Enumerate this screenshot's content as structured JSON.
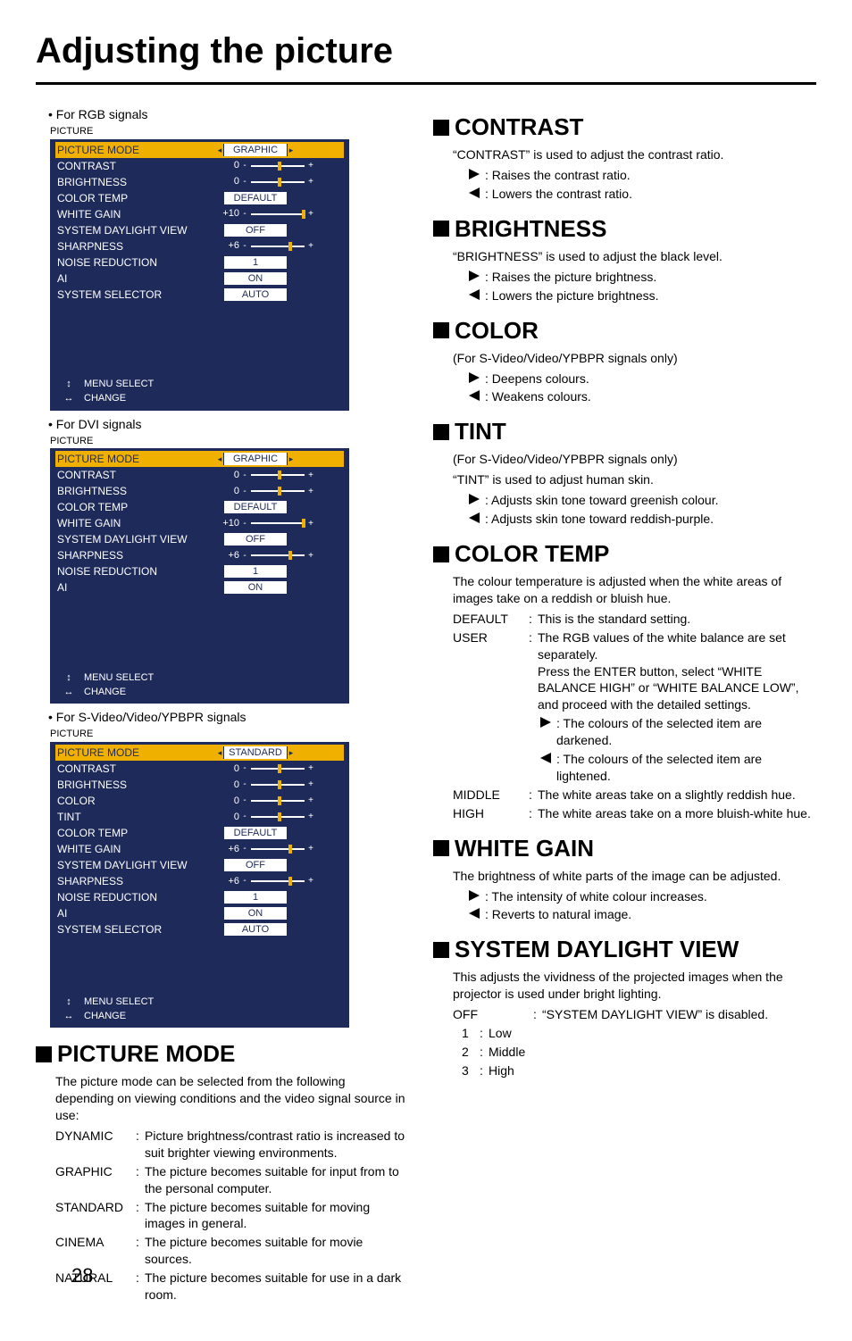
{
  "page_number": "28",
  "main_title": "Adjusting the picture",
  "left": {
    "signals": [
      {
        "label": "• For RGB signals",
        "menu_title": "PICTURE",
        "spacer": "tall",
        "rows": [
          {
            "label": "PICTURE MODE",
            "type": "box",
            "value": "GRAPHIC",
            "highlight": true,
            "arrows": true
          },
          {
            "label": "CONTRAST",
            "type": "slider",
            "num": "0",
            "knob": 50
          },
          {
            "label": "BRIGHTNESS",
            "type": "slider",
            "num": "0",
            "knob": 50
          },
          {
            "label": "COLOR TEMP",
            "type": "box",
            "value": "DEFAULT"
          },
          {
            "label": "WHITE GAIN",
            "type": "slider",
            "num": "+10",
            "knob": 95
          },
          {
            "label": "SYSTEM DAYLIGHT VIEW",
            "type": "box",
            "value": "OFF"
          },
          {
            "label": "SHARPNESS",
            "type": "slider",
            "num": "+6",
            "knob": 70
          },
          {
            "label": "NOISE REDUCTION",
            "type": "box",
            "value": "1"
          },
          {
            "label": "AI",
            "type": "box",
            "value": "ON"
          },
          {
            "label": "SYSTEM SELECTOR",
            "type": "box",
            "value": "AUTO"
          }
        ],
        "footer": [
          {
            "sym": "↕",
            "text": "MENU SELECT"
          },
          {
            "sym": "↔",
            "text": "CHANGE"
          }
        ]
      },
      {
        "label": "• For DVI signals",
        "menu_title": "PICTURE",
        "spacer": "tall",
        "rows": [
          {
            "label": "PICTURE MODE",
            "type": "box",
            "value": "GRAPHIC",
            "highlight": true,
            "arrows": true
          },
          {
            "label": "CONTRAST",
            "type": "slider",
            "num": "0",
            "knob": 50
          },
          {
            "label": "BRIGHTNESS",
            "type": "slider",
            "num": "0",
            "knob": 50
          },
          {
            "label": "COLOR TEMP",
            "type": "box",
            "value": "DEFAULT"
          },
          {
            "label": "WHITE GAIN",
            "type": "slider",
            "num": "+10",
            "knob": 95
          },
          {
            "label": "SYSTEM DAYLIGHT VIEW",
            "type": "box",
            "value": "OFF"
          },
          {
            "label": "SHARPNESS",
            "type": "slider",
            "num": "+6",
            "knob": 70
          },
          {
            "label": "NOISE REDUCTION",
            "type": "box",
            "value": "1"
          },
          {
            "label": "AI",
            "type": "box",
            "value": "ON"
          }
        ],
        "footer": [
          {
            "sym": "↕",
            "text": "MENU SELECT"
          },
          {
            "sym": "↔",
            "text": "CHANGE"
          }
        ]
      },
      {
        "label": "• For S-Video/Video/YPBPR signals",
        "menu_title": "PICTURE",
        "spacer": "",
        "rows": [
          {
            "label": "PICTURE MODE",
            "type": "box",
            "value": "STANDARD",
            "highlight": true,
            "arrows": true
          },
          {
            "label": "CONTRAST",
            "type": "slider",
            "num": "0",
            "knob": 50
          },
          {
            "label": "BRIGHTNESS",
            "type": "slider",
            "num": "0",
            "knob": 50
          },
          {
            "label": "COLOR",
            "type": "slider",
            "num": "0",
            "knob": 50
          },
          {
            "label": "TINT",
            "type": "slider",
            "num": "0",
            "knob": 50
          },
          {
            "label": "COLOR TEMP",
            "type": "box",
            "value": "DEFAULT"
          },
          {
            "label": "WHITE GAIN",
            "type": "slider",
            "num": "+6",
            "knob": 70
          },
          {
            "label": "SYSTEM DAYLIGHT VIEW",
            "type": "box",
            "value": "OFF"
          },
          {
            "label": "SHARPNESS",
            "type": "slider",
            "num": "+6",
            "knob": 70
          },
          {
            "label": "NOISE REDUCTION",
            "type": "box",
            "value": "1"
          },
          {
            "label": "AI",
            "type": "box",
            "value": "ON"
          },
          {
            "label": "SYSTEM SELECTOR",
            "type": "box",
            "value": "AUTO"
          }
        ],
        "footer": [
          {
            "sym": "↕",
            "text": "MENU SELECT"
          },
          {
            "sym": "↔",
            "text": "CHANGE"
          }
        ]
      }
    ],
    "picture_mode": {
      "heading": "PICTURE MODE",
      "intro": "The picture mode can be selected from the following depending on viewing conditions and the video signal source in use:",
      "items": [
        {
          "term": "DYNAMIC",
          "desc": "Picture brightness/contrast ratio is increased to suit brighter viewing environments."
        },
        {
          "term": "GRAPHIC",
          "desc": "The picture becomes suitable for input from to the personal computer."
        },
        {
          "term": "STANDARD",
          "desc": "The picture becomes suitable for moving images in general."
        },
        {
          "term": "CINEMA",
          "desc": "The picture becomes suitable for movie sources."
        },
        {
          "term": "NATURAL",
          "desc": "The picture becomes suitable for use in a dark room."
        }
      ]
    }
  },
  "right": {
    "contrast": {
      "heading": "CONTRAST",
      "intro": "“CONTRAST” is used to adjust the contrast ratio.",
      "arrows": [
        {
          "dir": "r",
          "text": ": Raises the contrast ratio."
        },
        {
          "dir": "l",
          "text": ": Lowers the contrast ratio."
        }
      ]
    },
    "brightness": {
      "heading": "BRIGHTNESS",
      "intro": "“BRIGHTNESS” is used to adjust the black level.",
      "arrows": [
        {
          "dir": "r",
          "text": ": Raises the picture brightness."
        },
        {
          "dir": "l",
          "text": ": Lowers the picture brightness."
        }
      ]
    },
    "color": {
      "heading": "COLOR",
      "note": "(For S-Video/Video/YPBPR signals only)",
      "arrows": [
        {
          "dir": "r",
          "text": ": Deepens colours."
        },
        {
          "dir": "l",
          "text": ": Weakens colours."
        }
      ]
    },
    "tint": {
      "heading": "TINT",
      "note": "(For S-Video/Video/YPBPR signals only)",
      "intro": "“TINT” is used to adjust human skin.",
      "arrows": [
        {
          "dir": "r",
          "text": ": Adjusts skin tone toward greenish colour."
        },
        {
          "dir": "l",
          "text": ": Adjusts skin tone toward reddish-purple."
        }
      ]
    },
    "colortemp": {
      "heading": "COLOR TEMP",
      "intro": "The colour temperature is adjusted when the white areas of images take on a reddish or bluish hue.",
      "items": [
        {
          "term": "DEFAULT",
          "desc": "This is the standard setting."
        },
        {
          "term": "USER",
          "desc": "The RGB values of the white balance are set separately.\nPress the ENTER button, select “WHITE BALANCE HIGH” or “WHITE BALANCE LOW”, and proceed with the detailed settings."
        }
      ],
      "user_arrows": [
        {
          "dir": "r",
          "text": ": The colours of the selected item are darkened."
        },
        {
          "dir": "l",
          "text": ": The colours of the selected item are lightened."
        }
      ],
      "items2": [
        {
          "term": "MIDDLE",
          "desc": "The white areas take on a slightly reddish hue."
        },
        {
          "term": "HIGH",
          "desc": "The white areas take on a more bluish-white hue."
        }
      ]
    },
    "whitegain": {
      "heading": "WHITE GAIN",
      "intro": "The brightness of white parts of the image can be adjusted.",
      "arrows": [
        {
          "dir": "r",
          "text": ": The intensity of white colour increases."
        },
        {
          "dir": "l",
          "text": ": Reverts to natural image."
        }
      ]
    },
    "sdv": {
      "heading": "SYSTEM DAYLIGHT VIEW",
      "intro": "This adjusts the vividness of the projected images when the projector is used under bright lighting.",
      "items": [
        {
          "term": "OFF",
          "desc": "“SYSTEM DAYLIGHT VIEW” is disabled."
        },
        {
          "term": "1",
          "desc": "Low"
        },
        {
          "term": "2",
          "desc": "Middle"
        },
        {
          "term": "3",
          "desc": "High"
        }
      ]
    }
  }
}
